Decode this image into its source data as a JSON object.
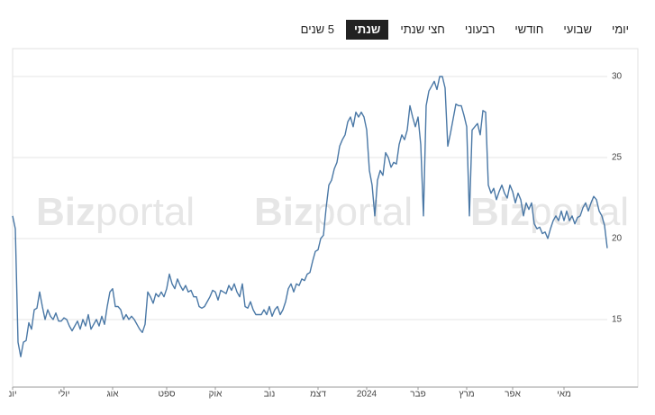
{
  "tabs": [
    "יומי",
    "שבועי",
    "חודשי",
    "רבעוני",
    "חצי שנתי",
    "שנתי",
    "5 שנים"
  ],
  "selected_tab": 5,
  "watermark": [
    "Biz",
    "portal"
  ],
  "chart_data": {
    "type": "line",
    "color": "#4a78a6",
    "grid": true,
    "xlim": [
      0,
      220
    ],
    "ylim": [
      10.83,
      31.72
    ],
    "yticks": [
      15,
      20,
      25,
      30
    ],
    "xticks": [
      {
        "value": 0,
        "label": "יונ"
      },
      {
        "value": 19,
        "label": "יולי"
      },
      {
        "value": 37,
        "label": "אוג"
      },
      {
        "value": 57,
        "label": "ספט"
      },
      {
        "value": 75,
        "label": "אוק"
      },
      {
        "value": 95,
        "label": "נוב"
      },
      {
        "value": 113,
        "label": "דצמ"
      },
      {
        "value": 131,
        "label": "2024"
      },
      {
        "value": 150,
        "label": "פבר"
      },
      {
        "value": 168,
        "label": "מרץ"
      },
      {
        "value": 185,
        "label": "אפר"
      },
      {
        "value": 204,
        "label": "מאי"
      }
    ],
    "values": [
      21.4,
      20.6,
      13.6,
      12.7,
      13.6,
      13.7,
      14.8,
      14.4,
      15.6,
      15.7,
      16.7,
      15.8,
      15.0,
      15.6,
      15.2,
      15.0,
      15.4,
      14.9,
      14.9,
      15.1,
      15.0,
      14.6,
      14.3,
      14.6,
      14.9,
      14.4,
      15.0,
      14.6,
      15.3,
      14.4,
      14.7,
      15.0,
      14.6,
      15.2,
      14.7,
      15.8,
      16.7,
      16.9,
      15.8,
      15.8,
      15.6,
      15.0,
      15.3,
      15.0,
      15.2,
      15.0,
      14.7,
      14.4,
      14.2,
      14.7,
      16.7,
      16.4,
      16.0,
      16.6,
      16.4,
      16.7,
      16.4,
      16.9,
      17.8,
      17.2,
      16.9,
      17.5,
      17.1,
      16.8,
      17.1,
      16.7,
      16.8,
      16.4,
      16.4,
      15.8,
      15.7,
      15.8,
      16.1,
      16.4,
      16.8,
      16.7,
      16.2,
      16.8,
      16.7,
      16.6,
      17.1,
      16.8,
      17.2,
      16.7,
      16.4,
      17.2,
      15.8,
      15.7,
      16.1,
      15.6,
      15.3,
      15.3,
      15.3,
      15.6,
      15.3,
      15.8,
      15.2,
      15.6,
      15.8,
      15.3,
      15.6,
      16.1,
      16.9,
      17.2,
      16.7,
      17.2,
      17.1,
      17.5,
      17.4,
      17.8,
      17.9,
      18.6,
      19.2,
      19.3,
      20.0,
      20.2,
      21.9,
      23.3,
      23.6,
      24.3,
      24.7,
      25.7,
      26.1,
      26.4,
      27.2,
      27.5,
      26.9,
      27.8,
      27.5,
      27.8,
      27.5,
      26.7,
      24.2,
      23.3,
      21.4,
      23.6,
      24.2,
      23.9,
      25.3,
      25.0,
      24.4,
      24.7,
      24.6,
      25.8,
      26.4,
      26.1,
      26.7,
      28.2,
      27.5,
      26.9,
      27.5,
      25.8,
      21.4,
      28.2,
      29.1,
      29.4,
      29.7,
      29.2,
      30.0,
      30.0,
      29.3,
      25.7,
      26.5,
      27.4,
      28.3,
      28.2,
      28.2,
      27.6,
      26.9,
      21.4,
      26.7,
      26.9,
      27.1,
      26.4,
      27.9,
      27.8,
      23.3,
      22.8,
      23.1,
      22.4,
      22.9,
      23.3,
      22.8,
      22.5,
      23.3,
      22.9,
      22.2,
      22.8,
      22.4,
      21.4,
      22.2,
      21.8,
      22.2,
      20.9,
      20.6,
      20.7,
      20.3,
      20.4,
      20.0,
      20.6,
      21.1,
      21.4,
      21.1,
      21.7,
      21.1,
      21.7,
      21.1,
      21.4,
      20.9,
      21.3,
      21.4,
      21.9,
      22.2,
      21.7,
      22.2,
      22.6,
      22.4,
      21.7,
      21.4,
      20.8,
      19.4
    ]
  }
}
